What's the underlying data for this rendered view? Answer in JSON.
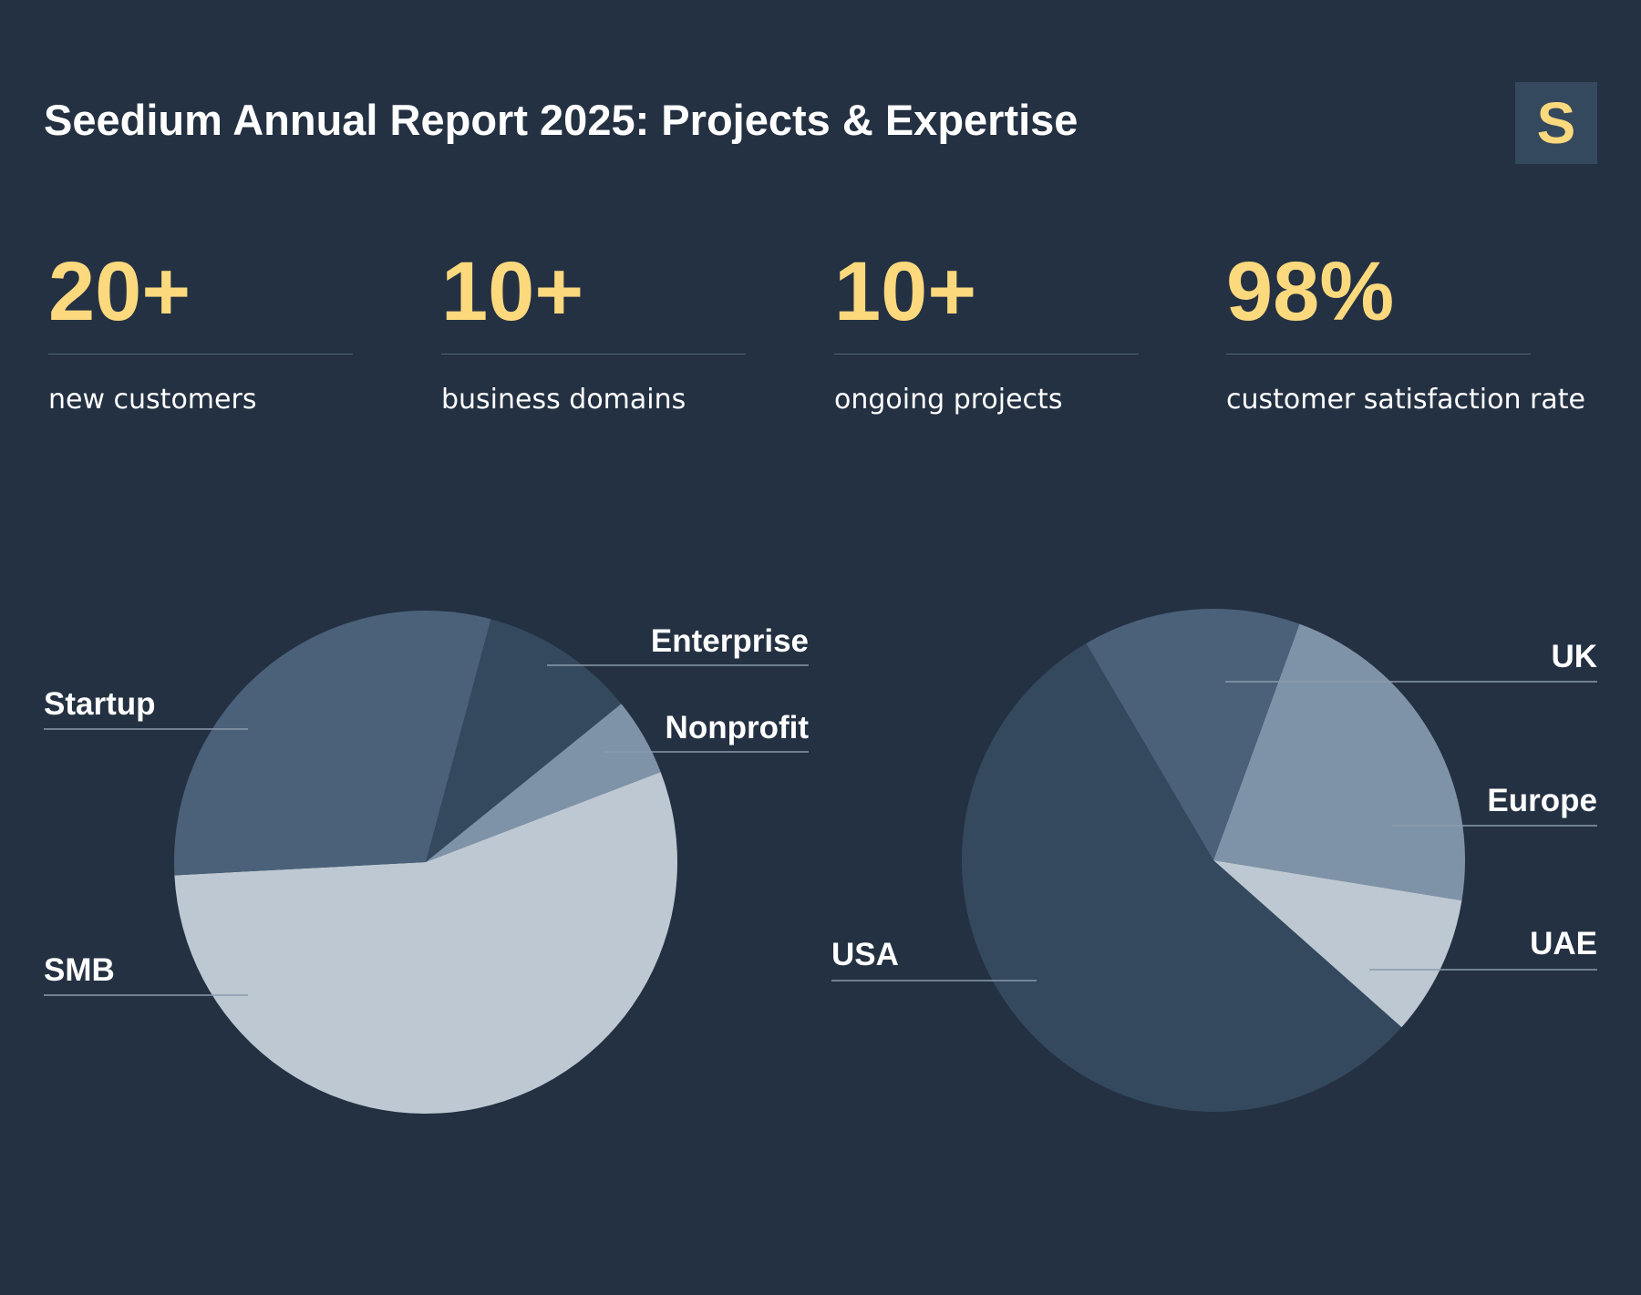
{
  "header": {
    "title": "Seedium Annual Report 2025: Projects & Expertise",
    "logo_letter": "S"
  },
  "colors": {
    "background": "#243142",
    "accent": "#fdd97e",
    "logo_bg": "#34495e"
  },
  "stats": [
    {
      "value": "20+",
      "label": "new customers"
    },
    {
      "value": "10+",
      "label": "business domains"
    },
    {
      "value": "10+",
      "label": "ongoing projects"
    },
    {
      "value": "98%",
      "label": "customer satisfaction rate"
    }
  ],
  "chart_data": [
    {
      "type": "pie",
      "start_angle_deg": 15,
      "categories": [
        "Enterprise",
        "Nonprofit",
        "SMB",
        "Startup"
      ],
      "values": [
        10,
        5,
        55,
        30
      ],
      "colors": [
        "#34495e",
        "#7f93a8",
        "#bdc8d2",
        "#4a6179"
      ],
      "legend": "callout labels"
    },
    {
      "type": "pie",
      "start_angle_deg": 20,
      "categories": [
        "Europe",
        "UAE",
        "USA",
        "UK"
      ],
      "values": [
        22,
        9,
        55,
        14
      ],
      "colors": [
        "#7f93a8",
        "#bdc8d2",
        "#34495e",
        "#4a6179"
      ],
      "legend": "callout labels"
    }
  ]
}
